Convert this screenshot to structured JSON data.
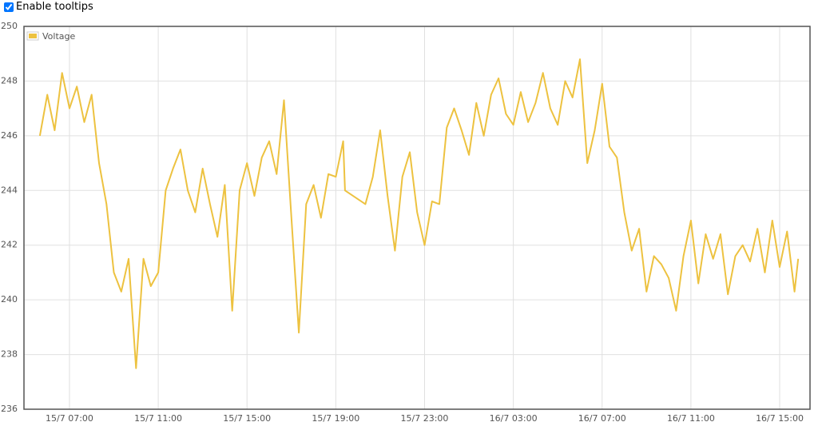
{
  "ui": {
    "checkbox_label": "Enable tooltips",
    "checked": true
  },
  "chart_data": {
    "type": "line",
    "x": [
      "15/7 05:40",
      "15/7 06:00",
      "15/7 06:20",
      "15/7 06:40",
      "15/7 07:00",
      "15/7 07:20",
      "15/7 07:40",
      "15/7 08:00",
      "15/7 08:20",
      "15/7 08:40",
      "15/7 09:00",
      "15/7 09:20",
      "15/7 09:40",
      "15/7 10:00",
      "15/7 10:20",
      "15/7 10:40",
      "15/7 11:00",
      "15/7 11:20",
      "15/7 11:40",
      "15/7 12:00",
      "15/7 12:20",
      "15/7 12:40",
      "15/7 13:00",
      "15/7 13:20",
      "15/7 13:40",
      "15/7 14:00",
      "15/7 14:20",
      "15/7 14:40",
      "15/7 15:00",
      "15/7 15:20",
      "15/7 15:40",
      "15/7 16:00",
      "15/7 16:20",
      "15/7 16:40",
      "15/7 17:00",
      "15/7 17:20",
      "15/7 17:40",
      "15/7 18:00",
      "15/7 18:20",
      "15/7 18:40",
      "15/7 19:00",
      "15/7 19:20",
      "15/7 19:25",
      "15/7 20:20",
      "15/7 20:40",
      "15/7 21:00",
      "15/7 21:20",
      "15/7 21:40",
      "15/7 22:00",
      "15/7 22:20",
      "15/7 22:40",
      "15/7 23:00",
      "15/7 23:20",
      "15/7 23:40",
      "16/7 00:00",
      "16/7 00:20",
      "16/7 00:40",
      "16/7 01:00",
      "16/7 01:20",
      "16/7 01:40",
      "16/7 02:00",
      "16/7 02:20",
      "16/7 02:40",
      "16/7 03:00",
      "16/7 03:20",
      "16/7 03:40",
      "16/7 04:00",
      "16/7 04:20",
      "16/7 04:40",
      "16/7 05:00",
      "16/7 05:20",
      "16/7 05:40",
      "16/7 06:00",
      "16/7 06:20",
      "16/7 06:40",
      "16/7 07:00",
      "16/7 07:20",
      "16/7 07:40",
      "16/7 08:00",
      "16/7 08:20",
      "16/7 08:40",
      "16/7 09:00",
      "16/7 09:20",
      "16/7 09:40",
      "16/7 10:00",
      "16/7 10:20",
      "16/7 10:40",
      "16/7 11:00",
      "16/7 11:20",
      "16/7 11:40",
      "16/7 12:00",
      "16/7 12:20",
      "16/7 12:40",
      "16/7 13:00",
      "16/7 13:20",
      "16/7 13:40",
      "16/7 14:00",
      "16/7 14:20",
      "16/7 14:40",
      "16/7 15:00",
      "16/7 15:20",
      "16/7 15:40",
      "16/7 15:50"
    ],
    "series": [
      {
        "name": "Voltage",
        "color": "#edc240",
        "values": [
          246,
          247.5,
          246.2,
          248.3,
          247,
          247.8,
          246.5,
          247.5,
          245,
          243.5,
          241,
          240.3,
          241.5,
          237.5,
          241.5,
          240.5,
          241,
          244,
          244.8,
          245.5,
          244,
          243.2,
          244.8,
          243.5,
          242.3,
          244.2,
          239.6,
          244,
          245,
          243.8,
          245.2,
          245.8,
          244.6,
          247.3,
          243,
          238.8,
          243.5,
          244.2,
          243,
          244.6,
          244.5,
          245.8,
          244,
          243.5,
          244.5,
          246.2,
          243.8,
          241.8,
          244.5,
          245.4,
          243.2,
          242,
          243.6,
          243.5,
          246.3,
          247,
          246.2,
          245.3,
          247.2,
          246,
          247.5,
          248.1,
          246.8,
          246.4,
          247.6,
          246.5,
          247.2,
          248.3,
          247,
          246.4,
          248,
          247.4,
          248.8,
          245,
          246.2,
          247.9,
          245.6,
          245.2,
          243.2,
          241.8,
          242.6,
          240.3,
          241.6,
          241.3,
          240.8,
          239.6,
          241.6,
          242.9,
          240.6,
          242.4,
          241.5,
          242.4,
          240.2,
          241.6,
          242,
          241.4,
          242.6,
          241,
          242.9,
          241.2,
          242.5,
          240.3,
          241.5
        ]
      }
    ],
    "xlim": [
      "15/7 04:57",
      "16/7 16:22"
    ],
    "xticks": [
      "15/7 07:00",
      "15/7 11:00",
      "15/7 15:00",
      "15/7 19:00",
      "15/7 23:00",
      "16/7 03:00",
      "16/7 07:00",
      "16/7 11:00",
      "16/7 15:00"
    ],
    "ylim": [
      236,
      250
    ],
    "yticks": [
      236,
      238,
      240,
      242,
      244,
      246,
      248,
      250
    ],
    "grid": true,
    "legend": "top-left"
  }
}
